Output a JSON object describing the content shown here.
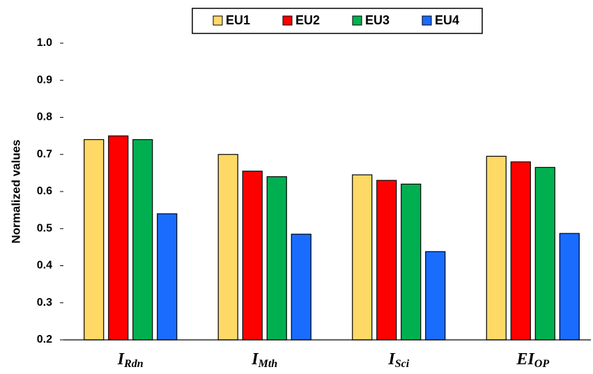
{
  "chart_data": {
    "type": "bar",
    "categories": [
      {
        "base": "I",
        "sub": "Rdn"
      },
      {
        "base": "I",
        "sub": "Mth"
      },
      {
        "base": "I",
        "sub": "Sci"
      },
      {
        "base": "EI",
        "sub": "OP"
      }
    ],
    "series": [
      {
        "name": "EU1",
        "color": "#ffd966",
        "values": [
          0.74,
          0.7,
          0.645,
          0.695
        ]
      },
      {
        "name": "EU2",
        "color": "#ff0000",
        "values": [
          0.75,
          0.655,
          0.63,
          0.68
        ]
      },
      {
        "name": "EU3",
        "color": "#00b050",
        "values": [
          0.74,
          0.64,
          0.62,
          0.665
        ]
      },
      {
        "name": "EU4",
        "color": "#1a6cff",
        "values": [
          0.54,
          0.485,
          0.438,
          0.487
        ]
      }
    ],
    "ylabel": "Normalized values",
    "ylim": [
      0.2,
      1.0
    ],
    "yticks": [
      0.2,
      0.3,
      0.4,
      0.5,
      0.6,
      0.7,
      0.8,
      0.9,
      {
        "value": 1.0,
        "label": "1.0"
      }
    ],
    "legend": "top"
  }
}
